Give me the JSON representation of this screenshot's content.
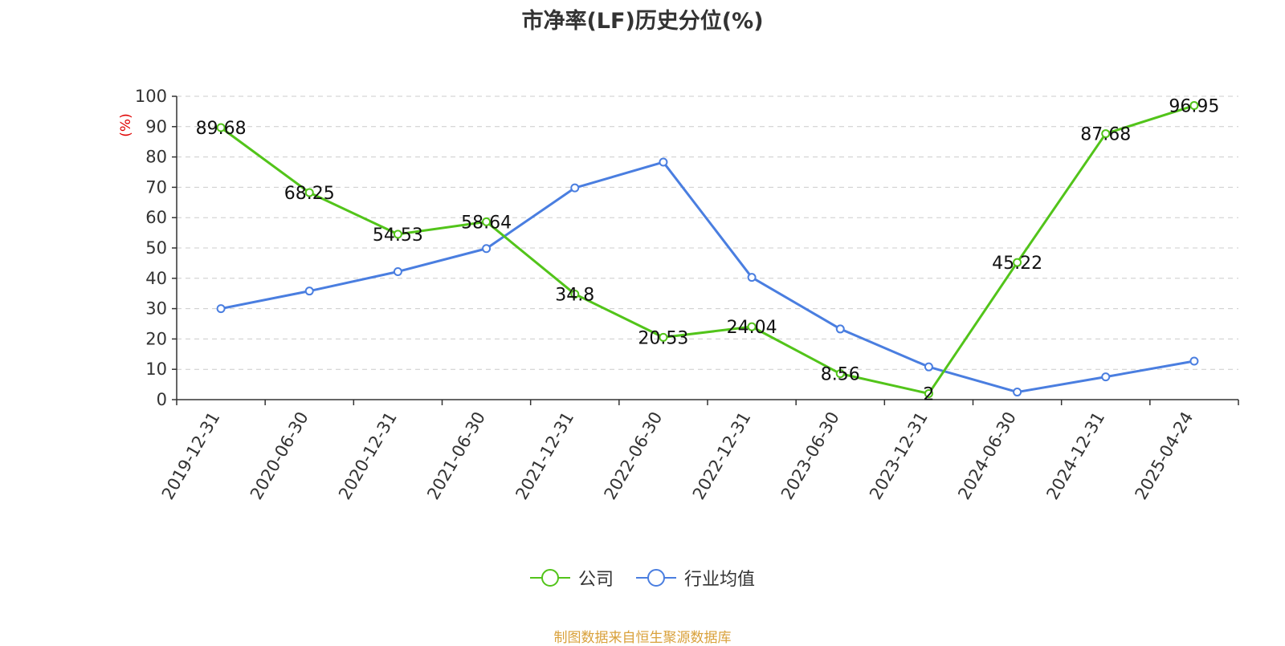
{
  "title": "市净率(LF)历史分位(%)",
  "source": "制图数据来自恒生聚源数据库",
  "colors": {
    "company": "#52c41a",
    "industry": "#4a7ee0",
    "unit": "#e00000",
    "grid": "#cccccc",
    "axis": "#333333"
  },
  "chart_data": {
    "type": "line",
    "title": "市净率(LF)历史分位(%)",
    "ylabel": "(%)",
    "ylim": [
      0,
      100
    ],
    "yticks": [
      0,
      10,
      20,
      30,
      40,
      50,
      60,
      70,
      80,
      90,
      100
    ],
    "grid": true,
    "legend_position": "bottom",
    "categories": [
      "2019-12-31",
      "2020-06-30",
      "2020-12-31",
      "2021-06-30",
      "2021-12-31",
      "2022-06-30",
      "2022-12-31",
      "2023-06-30",
      "2023-12-31",
      "2024-06-30",
      "2024-12-31",
      "2025-04-24"
    ],
    "series": [
      {
        "name": "公司",
        "values": [
          89.68,
          68.25,
          54.53,
          58.64,
          34.8,
          20.53,
          24.04,
          8.56,
          2,
          45.22,
          87.68,
          96.95
        ],
        "labels": [
          "89.68",
          "68.25",
          "54.53",
          "58.64",
          "34.8",
          "20.53",
          "24.04",
          "8.56",
          "2",
          "45.22",
          "87.68",
          "96.95"
        ]
      },
      {
        "name": "行业均值",
        "values": [
          30,
          35.8,
          42.2,
          49.8,
          69.8,
          78.3,
          40.3,
          23.3,
          10.8,
          2.5,
          7.5,
          12.7
        ]
      }
    ]
  }
}
